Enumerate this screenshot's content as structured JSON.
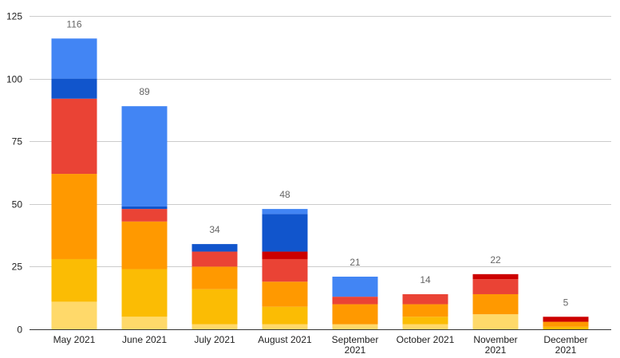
{
  "chart_data": {
    "type": "bar",
    "stacked": true,
    "title": "",
    "xlabel": "",
    "ylabel": "",
    "ylim": [
      0,
      125
    ],
    "yticks": [
      0,
      25,
      50,
      75,
      100,
      125
    ],
    "grid": true,
    "legend": "none",
    "categories": [
      [
        "May 2021"
      ],
      [
        "June 2021"
      ],
      [
        "July 2021"
      ],
      [
        "August 2021"
      ],
      [
        "September",
        "2021"
      ],
      [
        "October 2021"
      ],
      [
        "November",
        "2021"
      ],
      [
        "December",
        "2021"
      ]
    ],
    "totals": [
      116,
      89,
      34,
      48,
      21,
      14,
      22,
      5
    ],
    "series": [
      {
        "color": "#ffd96a",
        "values": [
          11,
          5,
          2,
          2,
          2,
          2,
          6,
          0
        ]
      },
      {
        "color": "#fbbc04",
        "values": [
          17,
          19,
          14,
          7,
          0,
          3,
          0,
          1
        ]
      },
      {
        "color": "#ff9900",
        "values": [
          34,
          19,
          9,
          10,
          8,
          5,
          8,
          2
        ]
      },
      {
        "color": "#ea4335",
        "values": [
          30,
          5,
          6,
          9,
          3,
          4,
          6,
          0
        ]
      },
      {
        "color": "#cc0000",
        "values": [
          0,
          0,
          0,
          3,
          0,
          0,
          2,
          2
        ]
      },
      {
        "color": "#1155cc",
        "values": [
          8,
          1,
          3,
          15,
          0,
          0,
          0,
          0
        ]
      },
      {
        "color": "#4285f4",
        "values": [
          16,
          40,
          0,
          2,
          8,
          0,
          0,
          0
        ]
      }
    ]
  }
}
